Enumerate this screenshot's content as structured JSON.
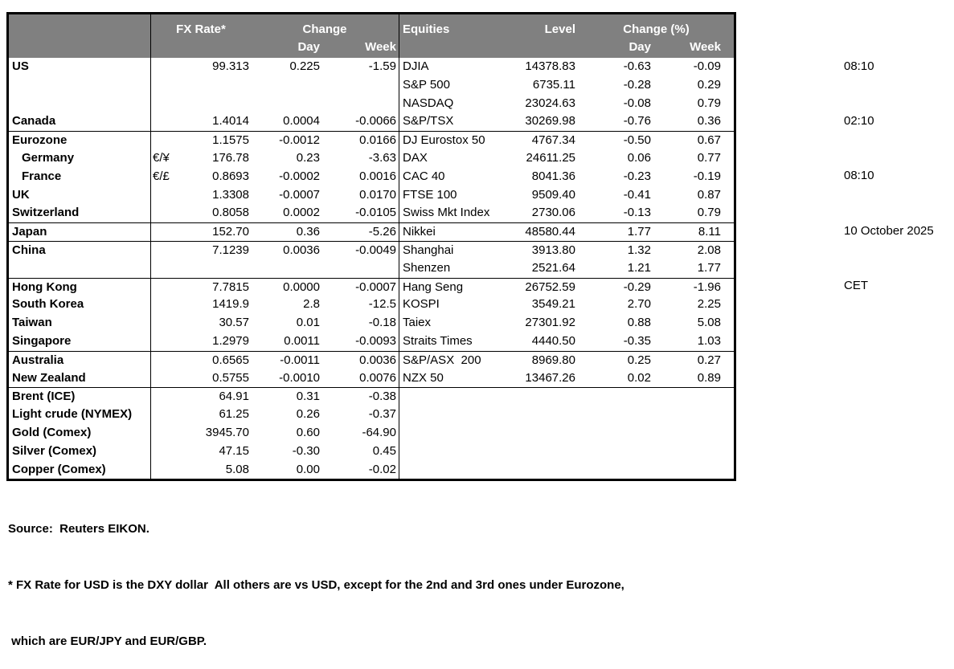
{
  "colors": {
    "header_bg": "#808080",
    "header_text": "#ffffff",
    "border": "#000000"
  },
  "table": {
    "header": {
      "fx_rate_label": "FX Rate*",
      "fx_change_label": "Change",
      "fx_day_label": "Day",
      "fx_week_label": "Week",
      "eq_label": "Equities",
      "eq_level_label": "Level",
      "eq_change_label": "Change (%)",
      "eq_day_label": "Day",
      "eq_week_label": "Week"
    },
    "rows": [
      {
        "fx_name": "US",
        "fx_sym": "",
        "fx_rate": "99.313",
        "fx_day": "0.225",
        "fx_week": "-1.59",
        "eq_name": "DJIA",
        "eq_level": "14378.83",
        "eq_day": "-0.63",
        "eq_week": "-0.09"
      },
      {
        "fx_name": "",
        "fx_sym": "",
        "fx_rate": "",
        "fx_day": "",
        "fx_week": "",
        "eq_name": "S&P 500",
        "eq_level": "6735.11",
        "eq_day": "-0.28",
        "eq_week": "0.29"
      },
      {
        "fx_name": "",
        "fx_sym": "",
        "fx_rate": "",
        "fx_day": "",
        "fx_week": "",
        "eq_name": "NASDAQ",
        "eq_level": "23024.63",
        "eq_day": "-0.08",
        "eq_week": "0.79"
      },
      {
        "fx_name": "Canada",
        "fx_sym": "",
        "fx_rate": "1.4014",
        "fx_day": "0.0004",
        "fx_week": "-0.0066",
        "eq_name": "S&P/TSX",
        "eq_level": "30269.98",
        "eq_day": "-0.76",
        "eq_week": "0.36"
      },
      {
        "sep": true,
        "fx_name": "Eurozone",
        "fx_sym": "",
        "fx_rate": "1.1575",
        "fx_day": "-0.0012",
        "fx_week": "0.0166",
        "eq_name": "DJ Eurostox 50",
        "eq_level": "4767.34",
        "eq_day": "-0.50",
        "eq_week": "0.67"
      },
      {
        "indent": true,
        "fx_name": "Germany",
        "fx_sym": "€/¥",
        "fx_rate": "176.78",
        "fx_day": "0.23",
        "fx_week": "-3.63",
        "eq_name": "DAX",
        "eq_level": "24611.25",
        "eq_day": "0.06",
        "eq_week": "0.77"
      },
      {
        "indent": true,
        "fx_name": "France",
        "fx_sym": "€/£",
        "fx_rate": "0.8693",
        "fx_day": "-0.0002",
        "fx_week": "0.0016",
        "eq_name": "CAC 40",
        "eq_level": "8041.36",
        "eq_day": "-0.23",
        "eq_week": "-0.19"
      },
      {
        "fx_name": "UK",
        "fx_sym": "",
        "fx_rate": "1.3308",
        "fx_day": "-0.0007",
        "fx_week": "0.0170",
        "eq_name": "FTSE 100",
        "eq_level": "9509.40",
        "eq_day": "-0.41",
        "eq_week": "0.87"
      },
      {
        "fx_name": "Switzerland",
        "fx_sym": "",
        "fx_rate": "0.8058",
        "fx_day": "0.0002",
        "fx_week": "-0.0105",
        "eq_name": "Swiss Mkt Index",
        "eq_level": "2730.06",
        "eq_day": "-0.13",
        "eq_week": "0.79"
      },
      {
        "sep": true,
        "fx_name": "Japan",
        "fx_sym": "",
        "fx_rate": "152.70",
        "fx_day": "0.36",
        "fx_week": "-5.26",
        "eq_name": "Nikkei",
        "eq_level": "48580.44",
        "eq_day": "1.77",
        "eq_week": "8.11"
      },
      {
        "sep": true,
        "fx_name": "China",
        "fx_sym": "",
        "fx_rate": "7.1239",
        "fx_day": "0.0036",
        "fx_week": "-0.0049",
        "eq_name": "Shanghai",
        "eq_level": "3913.80",
        "eq_day": "1.32",
        "eq_week": "2.08"
      },
      {
        "fx_name": "",
        "fx_sym": "",
        "fx_rate": "",
        "fx_day": "",
        "fx_week": "",
        "eq_name": "Shenzen",
        "eq_level": "2521.64",
        "eq_day": "1.21",
        "eq_week": "1.77"
      },
      {
        "sep": true,
        "fx_name": "Hong Kong",
        "fx_sym": "",
        "fx_rate": "7.7815",
        "fx_day": "0.0000",
        "fx_week": "-0.0007",
        "eq_name": "Hang Seng",
        "eq_level": "26752.59",
        "eq_day": "-0.29",
        "eq_week": "-1.96"
      },
      {
        "fx_name": "South Korea",
        "fx_sym": "",
        "fx_rate": "1419.9",
        "fx_day": "2.8",
        "fx_week": "-12.5",
        "eq_name": "KOSPI",
        "eq_level": "3549.21",
        "eq_day": "2.70",
        "eq_week": "2.25"
      },
      {
        "fx_name": "Taiwan",
        "fx_sym": "",
        "fx_rate": "30.57",
        "fx_day": "0.01",
        "fx_week": "-0.18",
        "eq_name": "Taiex",
        "eq_level": "27301.92",
        "eq_day": "0.88",
        "eq_week": "5.08"
      },
      {
        "fx_name": "Singapore",
        "fx_sym": "",
        "fx_rate": "1.2979",
        "fx_day": "0.0011",
        "fx_week": "-0.0093",
        "eq_name": "Straits Times",
        "eq_level": "4440.50",
        "eq_day": "-0.35",
        "eq_week": "1.03"
      },
      {
        "sep": true,
        "fx_name": "Australia",
        "fx_sym": "",
        "fx_rate": "0.6565",
        "fx_day": "-0.0011",
        "fx_week": "0.0036",
        "eq_name": "S&P/ASX  200",
        "eq_level": "8969.80",
        "eq_day": "0.25",
        "eq_week": "0.27"
      },
      {
        "fx_name": "New Zealand",
        "fx_sym": "",
        "fx_rate": "0.5755",
        "fx_day": "-0.0010",
        "fx_week": "0.0076",
        "eq_name": "NZX 50",
        "eq_level": "13467.26",
        "eq_day": "0.02",
        "eq_week": "0.89"
      },
      {
        "sep": true,
        "fx_name": "Brent (ICE)",
        "fx_sym": "",
        "fx_rate": "64.91",
        "fx_day": "0.31",
        "fx_week": "-0.38",
        "eq_name": "",
        "eq_level": "",
        "eq_day": "",
        "eq_week": ""
      },
      {
        "fx_name": "Light crude (NYMEX)",
        "fx_sym": "",
        "fx_rate": "61.25",
        "fx_day": "0.26",
        "fx_week": "-0.37",
        "eq_name": "",
        "eq_level": "",
        "eq_day": "",
        "eq_week": ""
      },
      {
        "fx_name": "Gold (Comex)",
        "fx_sym": "",
        "fx_rate": "3945.70",
        "fx_day": "0.60",
        "fx_week": "-64.90",
        "eq_name": "",
        "eq_level": "",
        "eq_day": "",
        "eq_week": ""
      },
      {
        "fx_name": "Silver (Comex)",
        "fx_sym": "",
        "fx_rate": "47.15",
        "fx_day": "-0.30",
        "fx_week": "0.45",
        "eq_name": "",
        "eq_level": "",
        "eq_day": "",
        "eq_week": ""
      },
      {
        "fx_name": "Copper (Comex)",
        "fx_sym": "",
        "fx_rate": "5.08",
        "fx_day": "0.00",
        "fx_week": "-0.02",
        "eq_name": "",
        "eq_level": "",
        "eq_day": "",
        "eq_week": ""
      }
    ]
  },
  "meta": {
    "times": [
      "08:10",
      "02:10",
      "08:10",
      "10 October 2025",
      "CET"
    ]
  },
  "footer": {
    "source_line": "Source:  Reuters EIKON.",
    "footnote_line1": "* FX Rate for USD is the DXY dollar  All others are vs USD, except for the 2nd and 3rd ones under Eurozone,",
    "footnote_line2": " which are EUR/JPY and EUR/GBP."
  }
}
